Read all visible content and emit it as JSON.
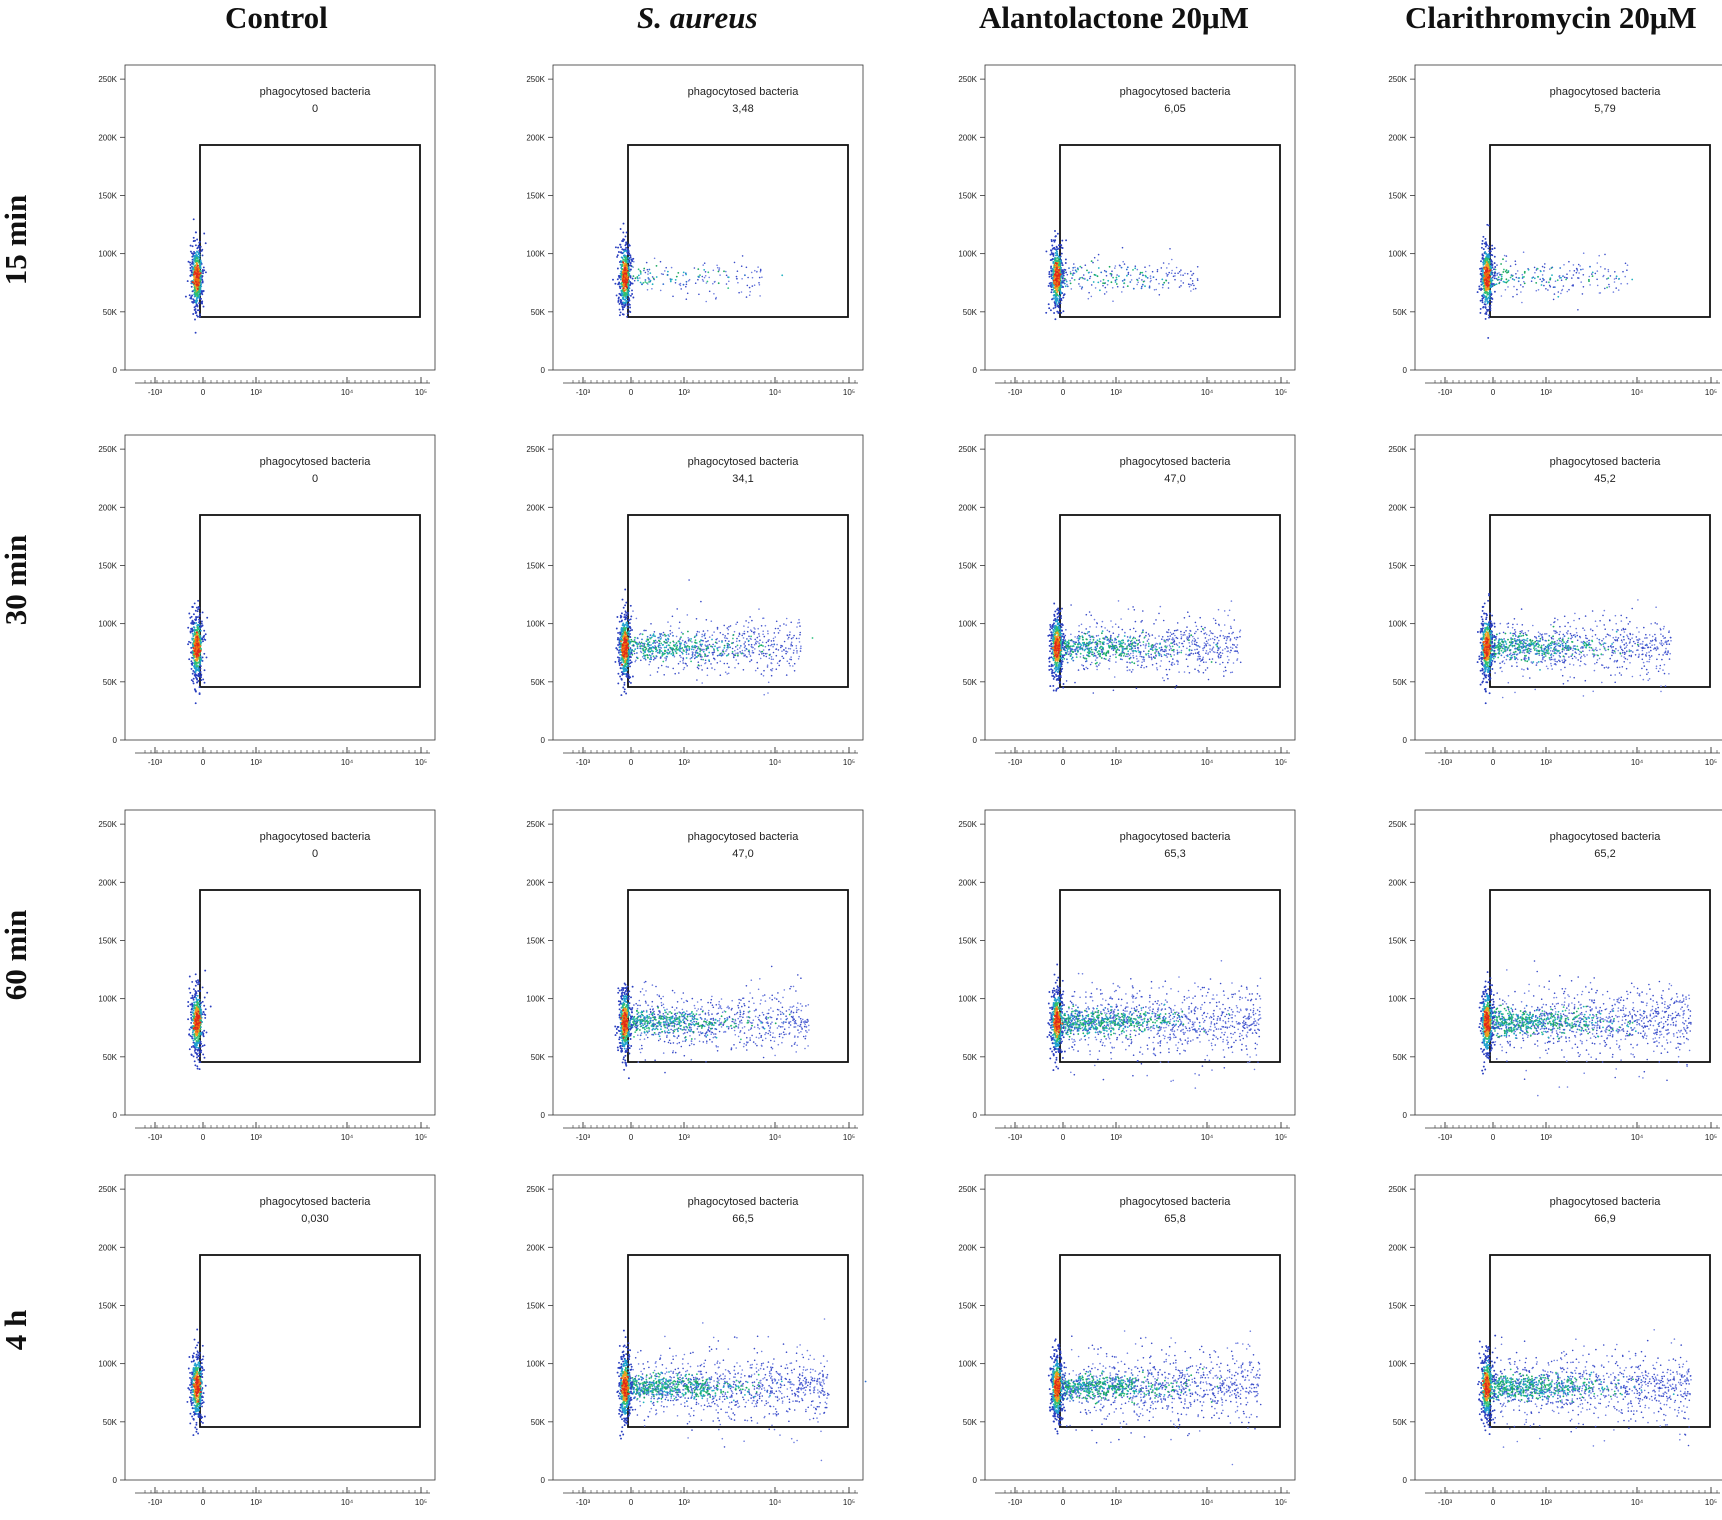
{
  "chart_data": {
    "type": "scatter",
    "description": "Flow cytometry density dot plots of phagocytosed bacteria; gate percentages per condition and time point",
    "columns": [
      {
        "label": "Control",
        "italic": false
      },
      {
        "label": "S. aureus",
        "italic": true
      },
      {
        "label": "Alantolactone  20μM",
        "italic": false
      },
      {
        "label": "Clarithromycin  20μM",
        "italic": false
      }
    ],
    "rows": [
      "15 min",
      "30 min",
      "60 min",
      "4 h"
    ],
    "y_ticks": [
      "0",
      "50K",
      "100K",
      "150K",
      "200K",
      "250K"
    ],
    "y_range": [
      0,
      262144
    ],
    "x_ticks": [
      "-10³",
      "0",
      "10³",
      "10⁴",
      "10⁵"
    ],
    "gate_name": "phagocytosed bacteria",
    "panels": [
      {
        "row": 0,
        "col": 0,
        "gate_value": "0",
        "spread": 0.0
      },
      {
        "row": 0,
        "col": 1,
        "gate_value": "3,48",
        "spread": 0.12
      },
      {
        "row": 0,
        "col": 2,
        "gate_value": "6,05",
        "spread": 0.16
      },
      {
        "row": 0,
        "col": 3,
        "gate_value": "5,79",
        "spread": 0.16
      },
      {
        "row": 1,
        "col": 0,
        "gate_value": "0",
        "spread": 0.0
      },
      {
        "row": 1,
        "col": 1,
        "gate_value": "34,1",
        "spread": 0.6
      },
      {
        "row": 1,
        "col": 2,
        "gate_value": "47,0",
        "spread": 0.7
      },
      {
        "row": 1,
        "col": 3,
        "gate_value": "45,2",
        "spread": 0.7
      },
      {
        "row": 2,
        "col": 0,
        "gate_value": "0",
        "spread": 0.0
      },
      {
        "row": 2,
        "col": 1,
        "gate_value": "47,0",
        "spread": 0.7
      },
      {
        "row": 2,
        "col": 2,
        "gate_value": "65,3",
        "spread": 0.95
      },
      {
        "row": 2,
        "col": 3,
        "gate_value": "65,2",
        "spread": 0.95
      },
      {
        "row": 3,
        "col": 0,
        "gate_value": "0,030",
        "spread": 0.0
      },
      {
        "row": 3,
        "col": 1,
        "gate_value": "66,5",
        "spread": 0.95
      },
      {
        "row": 3,
        "col": 2,
        "gate_value": "65,8",
        "spread": 0.95
      },
      {
        "row": 3,
        "col": 3,
        "gate_value": "66,9",
        "spread": 0.95
      }
    ]
  }
}
